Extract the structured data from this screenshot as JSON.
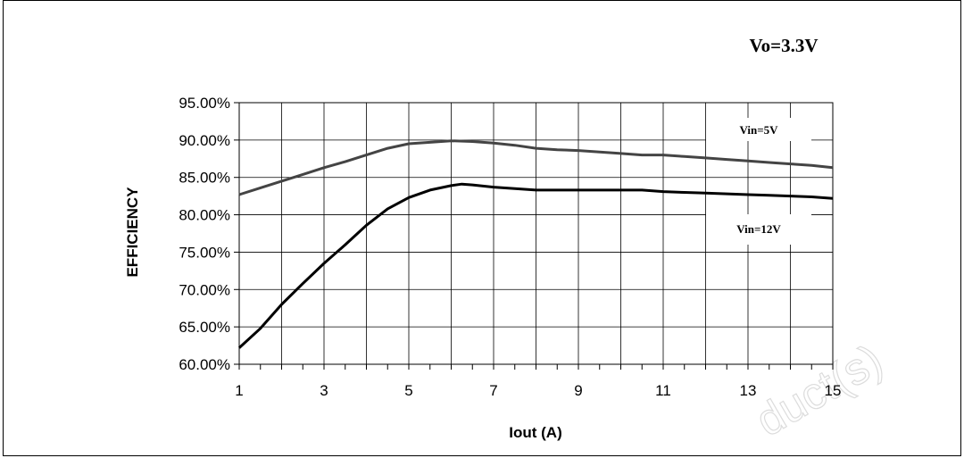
{
  "chart_data": {
    "type": "line",
    "title": "Vo=3.3V",
    "xlabel": "Iout (A)",
    "ylabel": "EFFICIENCY",
    "xlim": [
      1,
      15
    ],
    "ylim": [
      60,
      95
    ],
    "x_ticks": [
      "1",
      "3",
      "5",
      "7",
      "9",
      "11",
      "13",
      "15"
    ],
    "y_ticks": [
      "60.00%",
      "65.00%",
      "70.00%",
      "75.00%",
      "80.00%",
      "85.00%",
      "90.00%",
      "95.00%"
    ],
    "grid": true,
    "series": [
      {
        "name": "Vin=5V",
        "color": "#444444",
        "x": [
          1,
          1.5,
          2,
          2.5,
          3,
          3.5,
          4,
          4.5,
          5,
          5.5,
          6,
          6.5,
          7,
          7.5,
          8,
          8.5,
          9,
          9.5,
          10,
          10.5,
          11,
          11.5,
          12,
          12.5,
          13,
          13.5,
          14,
          14.5,
          15
        ],
        "y": [
          82.7,
          83.6,
          84.5,
          85.4,
          86.3,
          87.1,
          88.0,
          88.9,
          89.5,
          89.7,
          89.9,
          89.8,
          89.6,
          89.3,
          88.9,
          88.7,
          88.6,
          88.4,
          88.2,
          88.0,
          88.0,
          87.8,
          87.6,
          87.4,
          87.2,
          87.0,
          86.8,
          86.6,
          86.3
        ]
      },
      {
        "name": "Vin=12V",
        "color": "#000000",
        "x": [
          1,
          1.5,
          2,
          2.5,
          3,
          3.5,
          4,
          4.5,
          5,
          5.5,
          6,
          6.25,
          6.5,
          7,
          7.5,
          8,
          8.5,
          9,
          9.5,
          10,
          10.5,
          11,
          11.5,
          12,
          12.5,
          13,
          13.5,
          14,
          14.5,
          15
        ],
        "y": [
          62.2,
          64.8,
          68.0,
          70.8,
          73.5,
          76.0,
          78.6,
          80.8,
          82.3,
          83.3,
          83.9,
          84.1,
          84.0,
          83.7,
          83.5,
          83.3,
          83.3,
          83.3,
          83.3,
          83.3,
          83.3,
          83.1,
          83.0,
          82.9,
          82.8,
          82.7,
          82.6,
          82.5,
          82.4,
          82.2
        ]
      }
    ],
    "annotations": [
      "Vin=5V",
      "Vin=12V"
    ]
  },
  "watermark": "duct(s)"
}
